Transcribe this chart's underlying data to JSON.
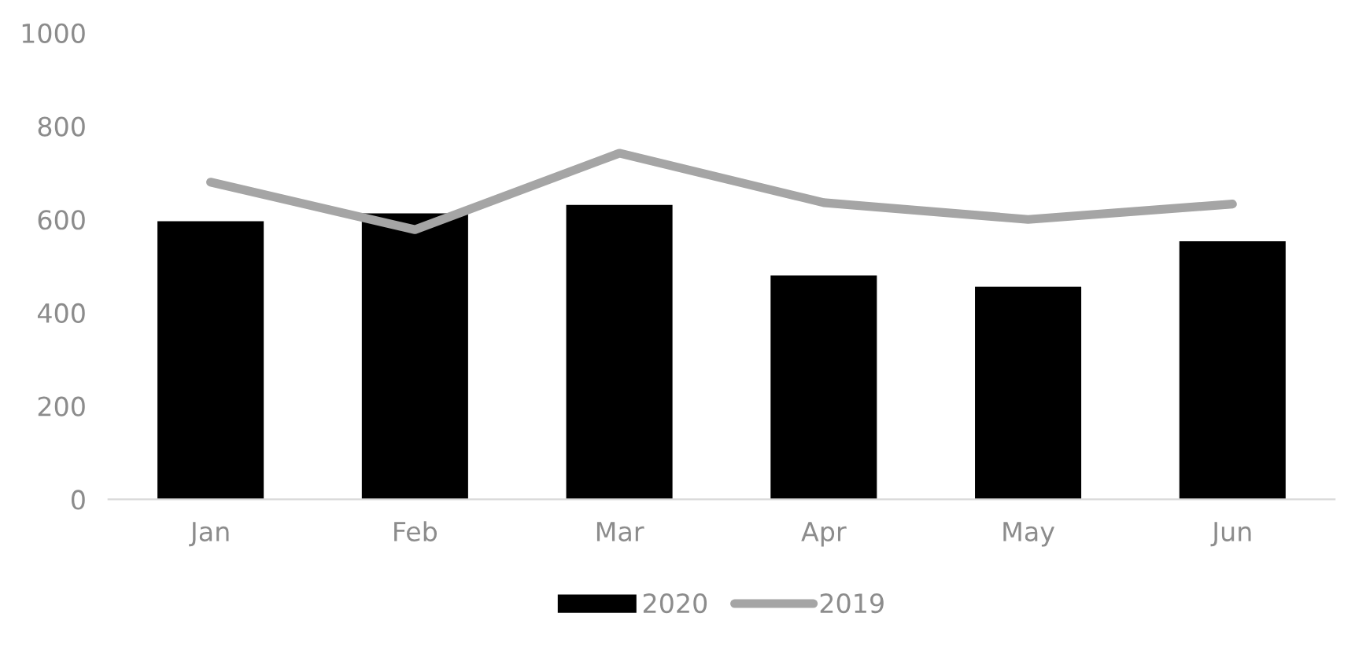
{
  "chart_data": {
    "type": "bar",
    "categories": [
      "Jan",
      "Feb",
      "Mar",
      "Apr",
      "May",
      "Jun"
    ],
    "series": [
      {
        "name": "2020",
        "color": "#000000",
        "values": [
          596,
          613,
          631,
          480,
          456,
          553
        ]
      },
      {
        "name": "2019",
        "type": "line",
        "color": "#a5a5a5",
        "values": [
          680,
          578,
          742,
          636,
          600,
          633
        ]
      }
    ],
    "ylim": [
      0,
      1000
    ],
    "yticks": [
      0,
      200,
      400,
      600,
      800,
      1000
    ],
    "grid": false,
    "legend": "bottom",
    "marker": "none",
    "line_style": "solid"
  }
}
